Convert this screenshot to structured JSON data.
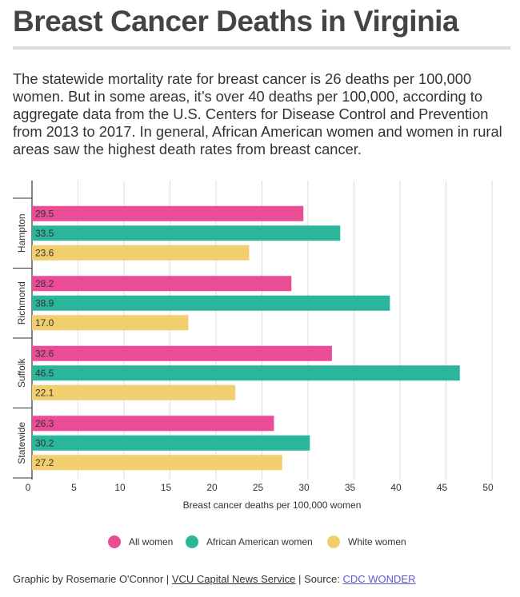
{
  "chart_data": {
    "type": "bar",
    "orientation": "horizontal",
    "title": "Breast Cancer Deaths in Virginia",
    "subtitle": "The statewide mortality rate for breast cancer is 26 deaths per 100,000 women. But in some areas, it’s over 40 deaths per 100,000, according to aggregate data from the U.S. Centers for Disease Control and Prevention from 2013 to 2017. In general, African American women and women in rural areas saw the highest death rates from breast cancer.",
    "categories": [
      "Hampton",
      "Richmond",
      "Suffolk",
      "Statewide"
    ],
    "series": [
      {
        "name": "All women",
        "color": "#ea4c96",
        "values": [
          29.5,
          28.2,
          32.6,
          26.3
        ]
      },
      {
        "name": "African American women",
        "color": "#2bb59b",
        "values": [
          33.5,
          38.9,
          46.5,
          30.2
        ]
      },
      {
        "name": "White women",
        "color": "#f2cf6e",
        "values": [
          23.6,
          17.0,
          22.1,
          27.2
        ],
        "value_labels": [
          "23.6",
          "17.0",
          "22.1",
          "27.2"
        ]
      }
    ],
    "x_label": "Breast cancer deaths per 100,000 women",
    "xlim": [
      0,
      50
    ],
    "xticks": [
      0,
      5,
      10,
      15,
      20,
      25,
      30,
      35,
      40,
      45,
      50
    ],
    "grid": true
  },
  "footer": {
    "credit": "Graphic by Rosemarie O'Connor",
    "separator": "|",
    "outlet": "VCU Capital News Service",
    "source_label": "Source:",
    "source": "CDC WONDER"
  }
}
